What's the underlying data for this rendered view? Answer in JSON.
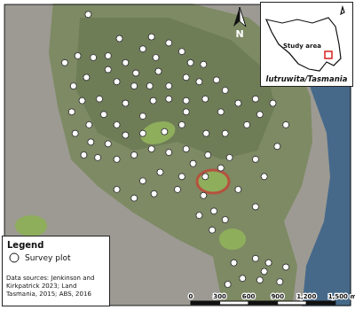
{
  "chart_data": {
    "type": "scatter",
    "xlim": [
      0,
      3600
    ],
    "ylim": [
      0,
      3150
    ],
    "tick_labels": false,
    "grid": false,
    "legend": "bottom-left",
    "legend_title": "Legend",
    "series": [
      {
        "name": "Survey plot",
        "color": "#ffffff",
        "marker": "circle",
        "x": [
          873,
          1197,
          1530,
          1440,
          1080,
          1260,
          1575,
          1710,
          1845,
          1935,
          2070,
          1602,
          1368,
          1080,
          927,
          765,
          630,
          855,
          720,
          1170,
          1350,
          1512,
          1710,
          1890,
          2025,
          2205,
          2295,
          2088,
          1890,
          1710,
          1548,
          1260,
          990,
          810,
          702,
          1035,
          882,
          1170,
          1440,
          1890,
          2250,
          2430,
          2610,
          2655,
          2520,
          2295,
          2097,
          1845,
          1665,
          1440,
          1260,
          1080,
          900,
          738,
          828,
          972,
          1170,
          1350,
          1530,
          1710,
          1890,
          2115,
          2340,
          2790,
          2925,
          2835,
          2610,
          2250,
          2088,
          1962,
          1845,
          1620,
          1440,
          1170,
          1350,
          1557,
          1800,
          2070,
          2178,
          2025,
          2430,
          2700,
          2610,
          2295,
          2160,
          2925,
          2745,
          2610,
          2475,
          2322,
          2655,
          2862,
          2385,
          2700
        ],
        "values": [
          3042,
          2790,
          2808,
          2682,
          2610,
          2538,
          2592,
          2745,
          2655,
          2538,
          2520,
          2448,
          2430,
          2466,
          2592,
          2610,
          2538,
          2385,
          2295,
          2340,
          2295,
          2295,
          2295,
          2385,
          2340,
          2358,
          2250,
          2160,
          2142,
          2160,
          2142,
          2115,
          2160,
          2142,
          2025,
          1998,
          1890,
          1890,
          1980,
          2025,
          2025,
          2115,
          2160,
          1998,
          1890,
          1800,
          1800,
          1890,
          1818,
          1800,
          1782,
          1692,
          1710,
          1800,
          1575,
          1548,
          1530,
          1575,
          1638,
          1602,
          1638,
          1575,
          1548,
          2115,
          1890,
          1665,
          1530,
          1440,
          1350,
          1485,
          1350,
          1395,
          1305,
          1215,
          1125,
          1170,
          1215,
          1152,
          990,
          945,
          1215,
          1350,
          1035,
          900,
          792,
          405,
          450,
          495,
          288,
          225,
          270,
          252,
          450,
          360
        ]
      }
    ],
    "north_arrow": "N",
    "inset": {
      "label": "Study area",
      "title": "lutruwita/Tasmania"
    },
    "scale_bar": {
      "ticks": [
        0,
        300,
        600,
        900,
        {
          "value": 1200,
          "label": "1,200"
        },
        {
          "value": 1500,
          "label": "1,500 m"
        }
      ]
    },
    "data_sources": [
      "Data sources: Jenkinson and",
      "Kirkpatrick 2023; Land",
      "Tasmania, 2015; ABS, 2016"
    ]
  }
}
